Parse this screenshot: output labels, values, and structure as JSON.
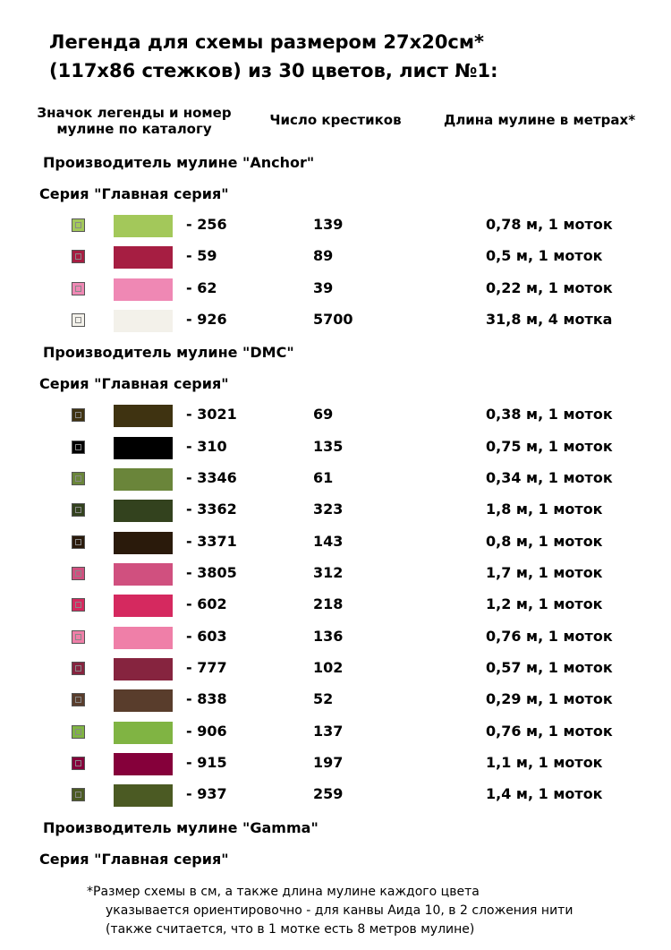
{
  "header": {
    "title_lines": [
      "Легенда для схемы размером 27x20см*",
      "(117x86 стежков) из 30 цветов, лист №1:"
    ]
  },
  "columns": {
    "symbol_lines": [
      "Значок легенды и номер",
      "мулине по каталогу"
    ],
    "count": "Число крестиков",
    "length": "Длина мулине в метрах*"
  },
  "sections": [
    {
      "manufacturer": "Производитель мулине \"Anchor\"",
      "series": "Серия \"Главная серия\"",
      "rows": [
        {
          "color": "#a3c85a",
          "number": "- 256",
          "count": "139",
          "length": "0,78 м, 1 моток"
        },
        {
          "color": "#a61e42",
          "number": "- 59",
          "count": "89",
          "length": "0,5 м, 1 моток"
        },
        {
          "color": "#ef88b4",
          "number": "- 62",
          "count": "39",
          "length": "0,22 м, 1 моток"
        },
        {
          "color": "#f3f1ea",
          "number": "- 926",
          "count": "5700",
          "length": "31,8 м, 4 мотка"
        }
      ]
    },
    {
      "manufacturer": "Производитель мулине \"DMC\"",
      "series": "Серия \"Главная серия\"",
      "rows": [
        {
          "color": "#3f3311",
          "number": "- 3021",
          "count": "69",
          "length": "0,38 м, 1 моток"
        },
        {
          "color": "#000000",
          "number": "- 310",
          "count": "135",
          "length": "0,75 м, 1 моток"
        },
        {
          "color": "#6a853a",
          "number": "- 3346",
          "count": "61",
          "length": "0,34 м, 1 моток"
        },
        {
          "color": "#33421e",
          "number": "- 3362",
          "count": "323",
          "length": "1,8 м, 1 моток"
        },
        {
          "color": "#2a1a0b",
          "number": "- 3371",
          "count": "143",
          "length": "0,8 м, 1 моток"
        },
        {
          "color": "#d0507f",
          "number": "- 3805",
          "count": "312",
          "length": "1,7 м, 1 моток"
        },
        {
          "color": "#d5295f",
          "number": "- 602",
          "count": "218",
          "length": "1,2 м, 1 моток"
        },
        {
          "color": "#ef7fa8",
          "number": "- 603",
          "count": "136",
          "length": "0,76 м, 1 моток"
        },
        {
          "color": "#86243f",
          "number": "- 777",
          "count": "102",
          "length": "0,57 м, 1 моток"
        },
        {
          "color": "#593d2c",
          "number": "- 838",
          "count": "52",
          "length": "0,29 м, 1 моток"
        },
        {
          "color": "#80b443",
          "number": "- 906",
          "count": "137",
          "length": "0,76 м, 1 моток"
        },
        {
          "color": "#85003a",
          "number": "- 915",
          "count": "197",
          "length": "1,1 м, 1 моток"
        },
        {
          "color": "#4b5a23",
          "number": "- 937",
          "count": "259",
          "length": "1,4 м, 1 моток"
        }
      ]
    },
    {
      "manufacturer": "Производитель мулине \"Gamma\"",
      "series": "Серия \"Главная серия\""
    }
  ],
  "footnote_lines": [
    "*Размер схемы в см, а также длина мулине каждого цвета",
    "указывается ориентировочно - для канвы Аида 10, в 2 сложения нити",
    "(также считается, что в 1 мотке есть 8 метров мулине)"
  ]
}
